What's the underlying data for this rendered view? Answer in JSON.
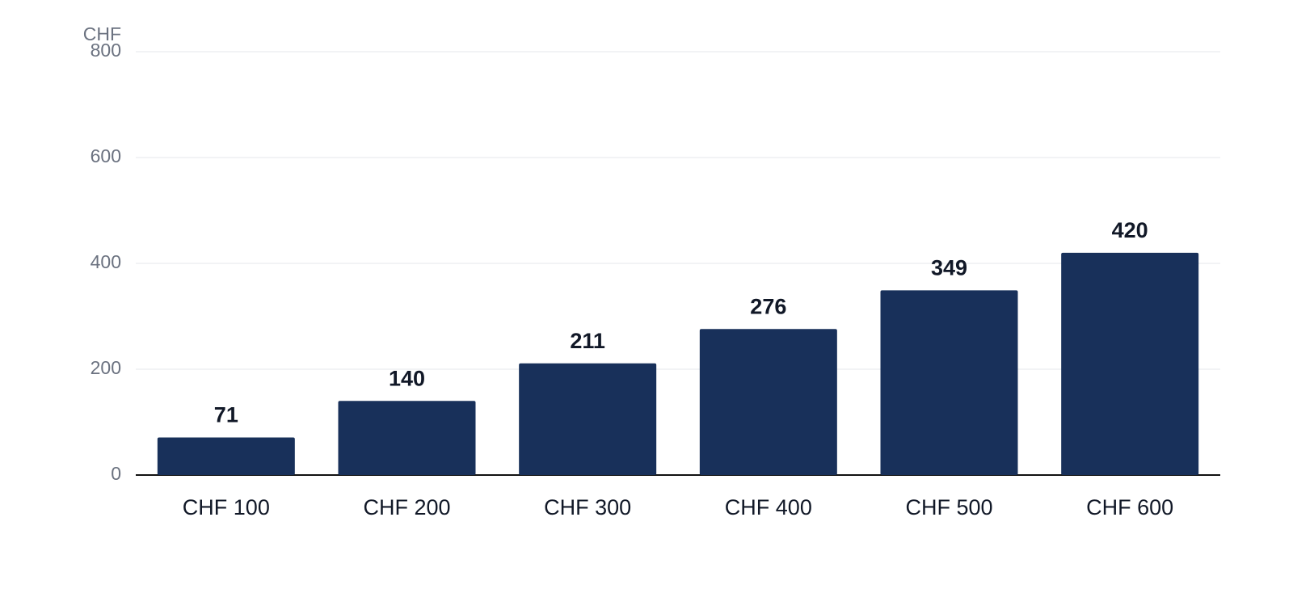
{
  "chart_data": {
    "type": "bar",
    "ylabel": "CHF",
    "categories": [
      "CHF 100",
      "CHF 200",
      "CHF 300",
      "CHF 400",
      "CHF 500",
      "CHF 600"
    ],
    "values": [
      71,
      140,
      211,
      276,
      349,
      420
    ],
    "color": "#18305a",
    "ylim": [
      0,
      800
    ],
    "yticks": [
      0,
      200,
      400,
      600,
      800
    ],
    "grid": true
  }
}
